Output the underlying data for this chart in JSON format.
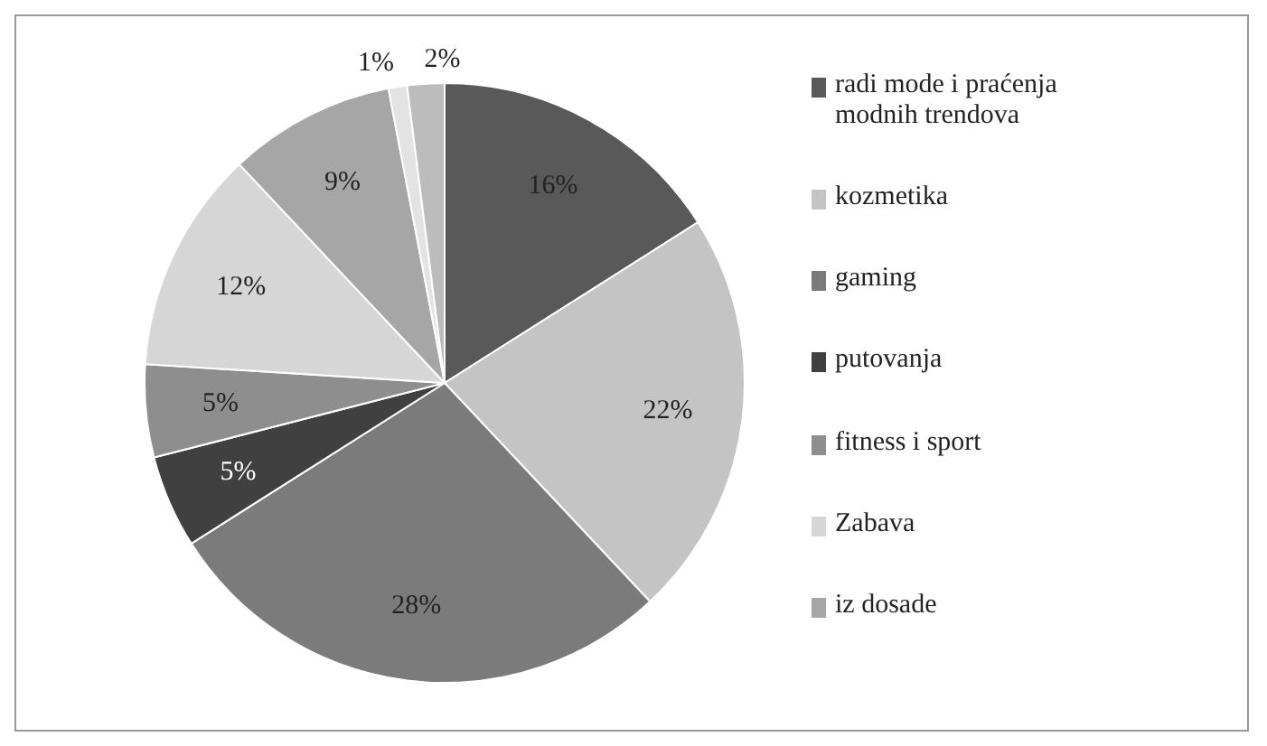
{
  "chart_data": {
    "type": "pie",
    "categories": [
      "radi mode i praćenja modnih trendova",
      "kozmetika",
      "gaming",
      "putovanja",
      "fitness i sport",
      "Zabava",
      "iz dosade",
      null,
      null
    ],
    "values": [
      16,
      22,
      28,
      5,
      5,
      12,
      9,
      1,
      2
    ],
    "colors": [
      "#595959",
      "#c4c4c4",
      "#7b7b7b",
      "#404040",
      "#8e8e8e",
      "#d6d6d6",
      "#a6a6a6",
      "#e3e3e3",
      "#bcbcbc"
    ],
    "value_labels": [
      "16%",
      "22%",
      "28%",
      "5%",
      "5%",
      "12%",
      "9%",
      "1%",
      "2%"
    ],
    "legend": "right"
  }
}
